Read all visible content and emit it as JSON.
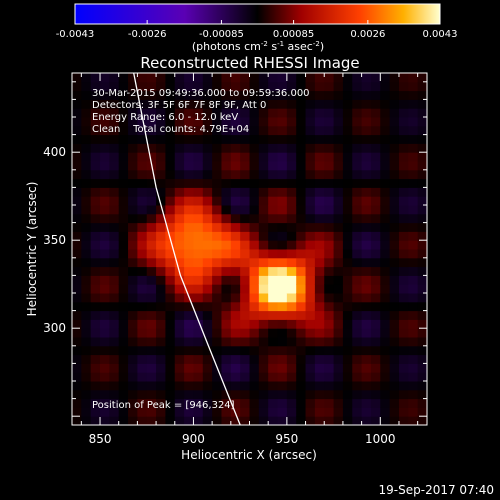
{
  "chart_data": {
    "type": "heatmap",
    "title": "Reconstructed RHESSI Image",
    "xlabel": "Heliocentric X (arcsec)",
    "ylabel": "Heliocentric Y (arcsec)",
    "xlim": [
      835,
      1025
    ],
    "ylim": [
      245,
      445
    ],
    "x_ticks": [
      850,
      900,
      950,
      1000
    ],
    "x_tick_labels": [
      "850",
      "900",
      "950",
      "1000"
    ],
    "y_ticks": [
      300,
      350,
      400
    ],
    "y_tick_labels": [
      "300",
      "350",
      "400"
    ],
    "colorbar": {
      "min": -0.0043,
      "max": 0.0043,
      "tick_values": [
        -0.0043,
        -0.0026,
        -0.00085,
        0.00085,
        0.0026,
        0.0043
      ],
      "tick_labels": [
        "-0.0043",
        "-0.0026",
        "-0.00085",
        "0.00085",
        "0.0026",
        "0.0043"
      ],
      "unit_parts": [
        "(photons cm",
        "-2",
        " s",
        "-1",
        " asec",
        "-2",
        ")"
      ]
    },
    "annotations": [
      "30-Mar-2015 09:49:36.000 to 09:59:36.000",
      "Detectors: 3F 5F 6F 7F 8F 9F, Att 0",
      "Energy Range: 6.0 - 12.0 keV",
      "Clean    Total counts: 4.79E+04"
    ],
    "peak_label": "Position of Peak = [946,324]",
    "sources": [
      {
        "x": 946,
        "y": 324,
        "relative_intensity": 1.0
      },
      {
        "x": 900,
        "y": 348,
        "relative_intensity": 0.85
      }
    ],
    "limb_curve": [
      [
        868,
        445
      ],
      [
        880,
        380
      ],
      [
        893,
        330
      ],
      [
        908,
        290
      ],
      [
        925,
        245
      ]
    ],
    "footer": "19-Sep-2017 07:40"
  }
}
